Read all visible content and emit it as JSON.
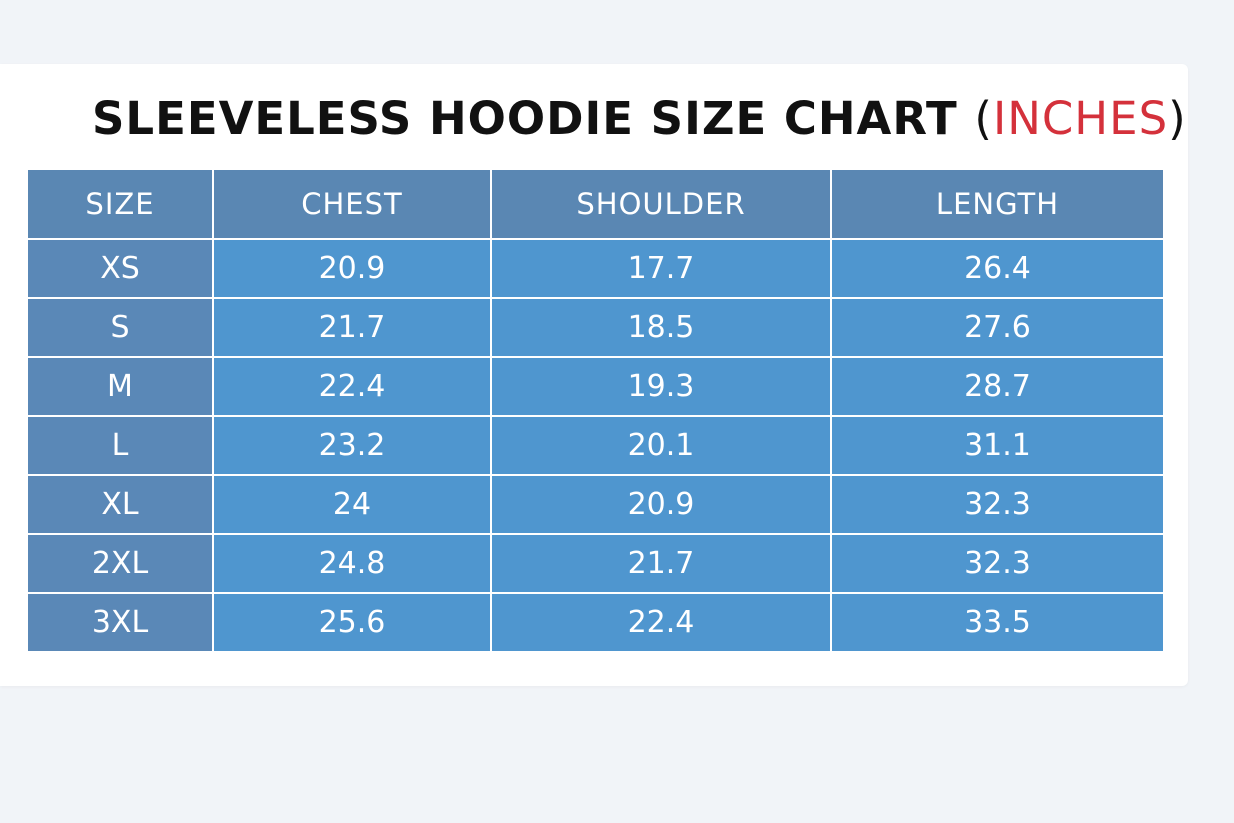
{
  "title": {
    "main": "SLEEVELESS HOODIE SIZE CHART",
    "open_paren": "(",
    "accent": "INCHES",
    "close_paren": ")",
    "accent_color": "#d4313b"
  },
  "colors": {
    "header_bg": "#5a87b3",
    "size_column_bg": "#5a88b7",
    "cell_bg": "#4f96cf",
    "page_bg": "#f1f4f8"
  },
  "table": {
    "headers": [
      "SIZE",
      "CHEST",
      "SHOULDER",
      "LENGTH"
    ],
    "rows": [
      [
        "XS",
        "20.9",
        "17.7",
        "26.4"
      ],
      [
        "S",
        "21.7",
        "18.5",
        "27.6"
      ],
      [
        "M",
        "22.4",
        "19.3",
        "28.7"
      ],
      [
        "L",
        "23.2",
        "20.1",
        "31.1"
      ],
      [
        "XL",
        "24",
        "20.9",
        "32.3"
      ],
      [
        "2XL",
        "24.8",
        "21.7",
        "32.3"
      ],
      [
        "3XL",
        "25.6",
        "22.4",
        "33.5"
      ]
    ]
  }
}
